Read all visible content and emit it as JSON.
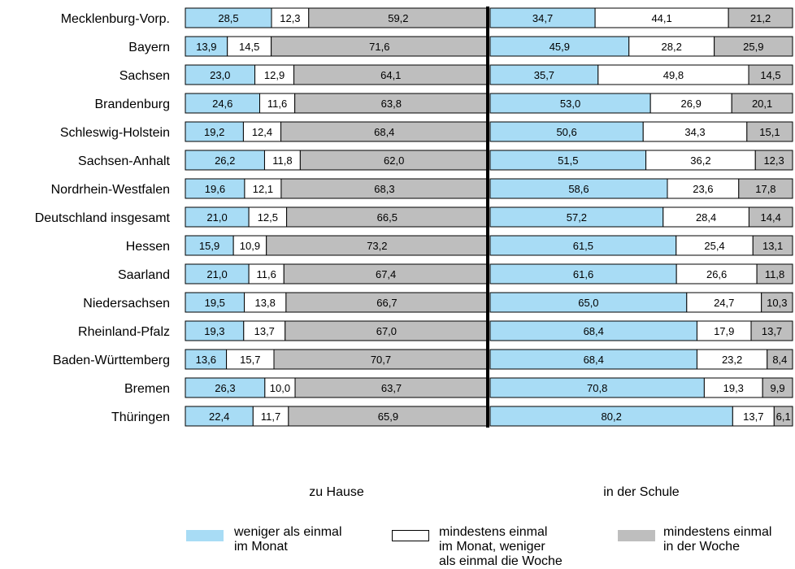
{
  "chart_data": {
    "type": "bar",
    "stacked": true,
    "orientation": "horizontal",
    "grid": false,
    "legend_position": "bottom",
    "categories": [
      "Mecklenburg-Vorp.",
      "Bayern",
      "Sachsen",
      "Brandenburg",
      "Schleswig-Holstein",
      "Sachsen-Anhalt",
      "Nordrhein-Westfalen",
      "Deutschland insgesamt",
      "Hessen",
      "Saarland",
      "Niedersachsen",
      "Rheinland-Pfalz",
      "Baden-Württemberg",
      "Bremen",
      "Thüringen"
    ],
    "series_colors": [
      "#a8dcf5",
      "#ffffff",
      "#bebebe"
    ],
    "panels": [
      {
        "title": "zu Hause",
        "series": [
          {
            "name": "weniger als einmal im Monat",
            "labels": [
              "28,5",
              "13,9",
              "23,0",
              "24,6",
              "19,2",
              "26,2",
              "19,6",
              "21,0",
              "15,9",
              "21,0",
              "19,5",
              "19,3",
              "13,6",
              "26,3",
              "22,4"
            ],
            "values": [
              28.5,
              13.9,
              23.0,
              24.6,
              19.2,
              26.2,
              19.6,
              21.0,
              15.9,
              21.0,
              19.5,
              19.3,
              13.6,
              26.3,
              22.4
            ]
          },
          {
            "name": "mindestens einmal im Monat, weniger als einmal die Woche",
            "labels": [
              "12,3",
              "14,5",
              "12,9",
              "11,6",
              "12,4",
              "11,8",
              "12,1",
              "12,5",
              "10,9",
              "11,6",
              "13,8",
              "13,7",
              "15,7",
              "10,0",
              "11,7"
            ],
            "values": [
              12.3,
              14.5,
              12.9,
              11.6,
              12.4,
              11.8,
              12.1,
              12.5,
              10.9,
              11.6,
              13.8,
              13.7,
              15.7,
              10.0,
              11.7
            ]
          },
          {
            "name": "mindestens einmal in der Woche",
            "labels": [
              "59,2",
              "71,6",
              "64,1",
              "63,8",
              "68,4",
              "62,0",
              "68,3",
              "66,5",
              "73,2",
              "67,4",
              "66,7",
              "67,0",
              "70,7",
              "63,7",
              "65,9"
            ],
            "values": [
              59.2,
              71.6,
              64.1,
              63.8,
              68.4,
              62.0,
              68.3,
              66.5,
              73.2,
              67.4,
              66.7,
              67.0,
              70.7,
              63.7,
              65.9
            ]
          }
        ]
      },
      {
        "title": "in der Schule",
        "series": [
          {
            "name": "weniger als einmal im Monat",
            "labels": [
              "34,7",
              "45,9",
              "35,7",
              "53,0",
              "50,6",
              "51,5",
              "58,6",
              "57,2",
              "61,5",
              "61,6",
              "65,0",
              "68,4",
              "68,4",
              "70,8",
              "80,2"
            ],
            "values": [
              34.7,
              45.9,
              35.7,
              53.0,
              50.6,
              51.5,
              58.6,
              57.2,
              61.5,
              61.6,
              65.0,
              68.4,
              68.4,
              70.8,
              80.2
            ]
          },
          {
            "name": "mindestens einmal im Monat, weniger als einmal die Woche",
            "labels": [
              "44,1",
              "28,2",
              "49,8",
              "26,9",
              "34,3",
              "36,2",
              "23,6",
              "28,4",
              "25,4",
              "26,6",
              "24,7",
              "17,9",
              "23,2",
              "19,3",
              "13,7"
            ],
            "values": [
              44.1,
              28.2,
              49.8,
              26.9,
              34.3,
              36.2,
              23.6,
              28.4,
              25.4,
              26.6,
              24.7,
              17.9,
              23.2,
              19.3,
              13.7
            ]
          },
          {
            "name": "mindestens einmal in der Woche",
            "labels": [
              "21,2",
              "25,9",
              "14,5",
              "20,1",
              "15,1",
              "12,3",
              "17,8",
              "14,4",
              "13,1",
              "11,8",
              "10,3",
              "13,7",
              "8,4",
              "9,9",
              "6,1"
            ],
            "values": [
              21.2,
              25.9,
              14.5,
              20.1,
              15.1,
              12.3,
              17.8,
              14.4,
              13.1,
              11.8,
              10.3,
              13.7,
              8.4,
              9.9,
              6.1
            ]
          }
        ]
      }
    ]
  },
  "legend": [
    {
      "text": "weniger als einmal\nim Monat",
      "color": "#a8dcf5"
    },
    {
      "text": "mindestens einmal\nim Monat, weniger\nals einmal die  Woche",
      "color": "#ffffff"
    },
    {
      "text": "mindestens einmal\nin der Woche",
      "color": "#bebebe"
    }
  ]
}
